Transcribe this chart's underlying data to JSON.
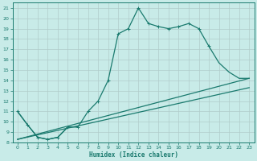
{
  "xlabel": "Humidex (Indice chaleur)",
  "xlim": [
    -0.5,
    23.5
  ],
  "ylim": [
    8,
    21.5
  ],
  "xticks": [
    0,
    1,
    2,
    3,
    4,
    5,
    6,
    7,
    8,
    9,
    10,
    11,
    12,
    13,
    14,
    15,
    16,
    17,
    18,
    19,
    20,
    21,
    22,
    23
  ],
  "yticks": [
    8,
    9,
    10,
    11,
    12,
    13,
    14,
    15,
    16,
    17,
    18,
    19,
    20,
    21
  ],
  "bg_color": "#c8ebe8",
  "grid_color": "#b0ccca",
  "line_color": "#1a7a6e",
  "lw": 0.9,
  "s0x": [
    0,
    1,
    2,
    3,
    4,
    5,
    6,
    7,
    8,
    9,
    10,
    11,
    12,
    13,
    14,
    15,
    16,
    17,
    18,
    19
  ],
  "s0y": [
    11.0,
    9.7,
    8.5,
    8.3,
    8.5,
    9.5,
    9.5,
    11.0,
    12.0,
    14.0,
    18.5,
    19.0,
    21.0,
    19.5,
    19.2,
    19.0,
    19.2,
    19.5,
    19.0,
    17.3
  ],
  "s1x": [
    19,
    20,
    21,
    22,
    23
  ],
  "s1y": [
    17.3,
    15.7,
    14.8,
    14.2,
    14.2
  ],
  "s2x": [
    0,
    23
  ],
  "s2y": [
    8.3,
    14.2
  ],
  "s3x": [
    0,
    23
  ],
  "s3y": [
    8.3,
    13.3
  ],
  "s4x": [
    0,
    1,
    2,
    3,
    4,
    5,
    6
  ],
  "s4y": [
    11.0,
    9.7,
    8.5,
    8.3,
    8.5,
    9.5,
    9.5
  ]
}
